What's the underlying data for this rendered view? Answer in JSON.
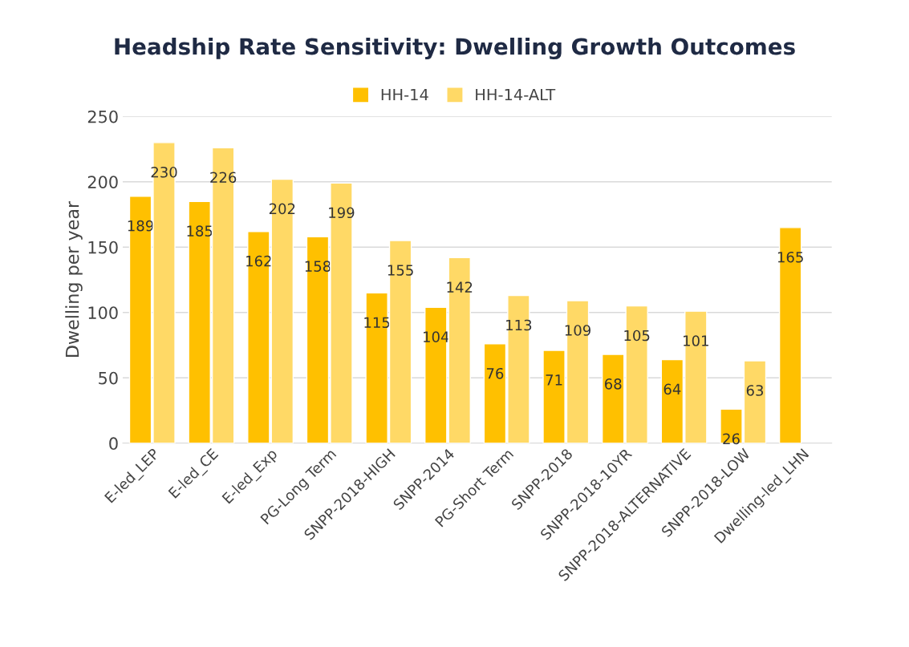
{
  "chart_data": {
    "type": "bar",
    "title": "Headship Rate Sensitivity: Dwelling Growth Outcomes",
    "ylabel": "Dwelling per year",
    "categories": [
      "E-led_LEP",
      "E-led_CE",
      "E-led_Exp",
      "PG-Long Term",
      "SNPP-2018-HIGH",
      "SNPP-2014",
      "PG-Short Term",
      "SNPP-2018",
      "SNPP-2018-10YR",
      "SNPP-2018-ALTERNATIVE",
      "SNPP-2018-LOW",
      "Dwelling-led_LHN"
    ],
    "series": [
      {
        "name": "HH-14",
        "color": "#ffc000",
        "values": [
          189,
          185,
          162,
          158,
          115,
          104,
          76,
          71,
          68,
          64,
          26,
          165
        ]
      },
      {
        "name": "HH-14-ALT",
        "color": "#ffd966",
        "values": [
          230,
          226,
          202,
          199,
          155,
          142,
          113,
          109,
          105,
          101,
          63,
          null
        ]
      }
    ],
    "ylim": [
      0,
      250
    ],
    "yticks": [
      0,
      50,
      100,
      150,
      200,
      250
    ],
    "grid": "y",
    "legend": "top",
    "data_labels": true
  }
}
